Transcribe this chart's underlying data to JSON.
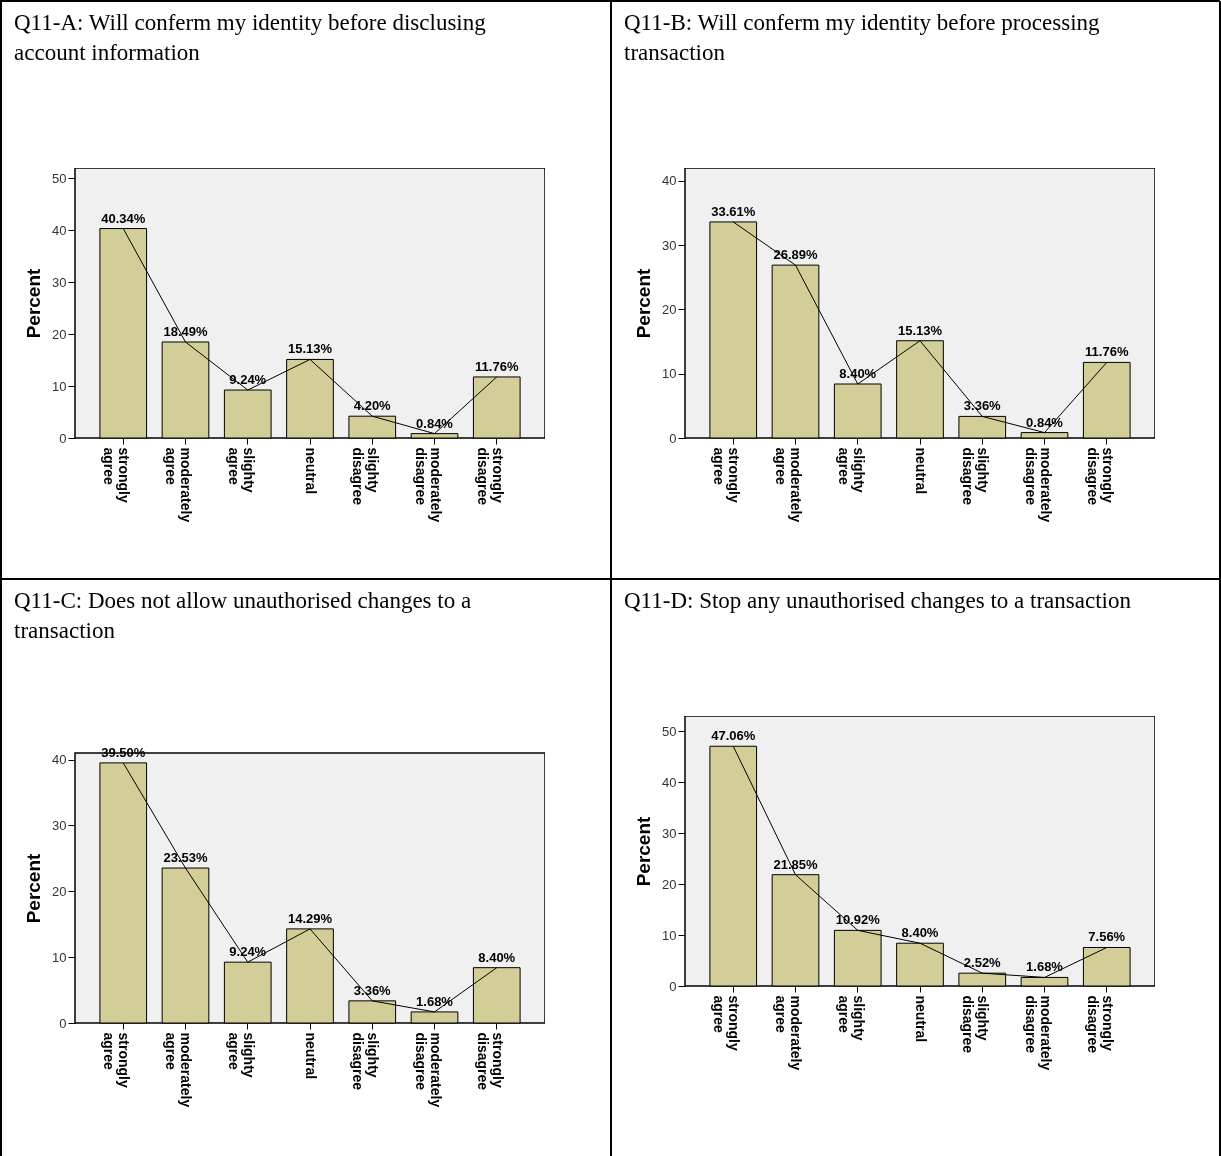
{
  "chart_data": [
    {
      "type": "bar",
      "title": "Q11-A: Will conferm my identity before disclusing account information",
      "ylabel": "Percent",
      "categories": [
        "strongly agree",
        "moderately agree",
        "slighty agree",
        "neutral",
        "slighty disagree",
        "moderately disagree",
        "strongly disagree"
      ],
      "ylim": [
        0,
        52
      ],
      "yticks": [
        0,
        10,
        20,
        30,
        40,
        50
      ],
      "series": [
        {
          "type": "bar",
          "color": "#d3ce97",
          "values": [
            40.34,
            18.49,
            9.24,
            15.13,
            4.2,
            0.84,
            11.76
          ],
          "value_labels": [
            "40.34%",
            "18.49%",
            "9.24%",
            "15.13%",
            "4.20%",
            "0.84%",
            "11.76%"
          ]
        },
        {
          "type": "line",
          "color": "#000000",
          "values": [
            40.34,
            18.49,
            9.24,
            15.13,
            4.2,
            0.84,
            11.76
          ]
        }
      ]
    },
    {
      "type": "bar",
      "title": "Q11-B: Will conferm my identity before processing transaction",
      "ylabel": "Percent",
      "categories": [
        "strongly agree",
        "moderately agree",
        "slighty agree",
        "neutral",
        "slighty disagree",
        "moderately disagree",
        "strongly disagree"
      ],
      "ylim": [
        0,
        42
      ],
      "yticks": [
        0,
        10,
        20,
        30,
        40
      ],
      "series": [
        {
          "type": "bar",
          "color": "#d3ce97",
          "values": [
            33.61,
            26.89,
            8.4,
            15.13,
            3.36,
            0.84,
            11.76
          ],
          "value_labels": [
            "33.61%",
            "26.89%",
            "8.40%",
            "15.13%",
            "3.36%",
            "0.84%",
            "11.76%"
          ]
        },
        {
          "type": "line",
          "color": "#000000",
          "values": [
            33.61,
            26.89,
            8.4,
            15.13,
            3.36,
            0.84,
            11.76
          ]
        }
      ]
    },
    {
      "type": "bar",
      "title": "Q11-C: Does not allow unauthorised changes to a transaction",
      "ylabel": "Percent",
      "categories": [
        "strongly agree",
        "moderately agree",
        "slighty agree",
        "neutral",
        "slighty disagree",
        "moderately disagree",
        "strongly disagree"
      ],
      "ylim": [
        0,
        41
      ],
      "yticks": [
        0,
        10,
        20,
        30,
        40
      ],
      "series": [
        {
          "type": "bar",
          "color": "#d3ce97",
          "values": [
            39.5,
            23.53,
            9.24,
            14.29,
            3.36,
            1.68,
            8.4
          ],
          "value_labels": [
            "39.50%",
            "23.53%",
            "9.24%",
            "14.29%",
            "3.36%",
            "1.68%",
            "8.40%"
          ]
        },
        {
          "type": "line",
          "color": "#000000",
          "values": [
            39.5,
            23.53,
            9.24,
            14.29,
            3.36,
            1.68,
            8.4
          ]
        }
      ]
    },
    {
      "type": "bar",
      "title": "Q11-D: Stop any unauthorised changes to a transaction",
      "ylabel": "Percent",
      "categories": [
        "strongly agree",
        "moderately agree",
        "slighty agree",
        "neutral",
        "slighty disagree",
        "moderately disagree",
        "strongly disagree"
      ],
      "ylim": [
        0,
        53
      ],
      "yticks": [
        0,
        10,
        20,
        30,
        40,
        50
      ],
      "series": [
        {
          "type": "bar",
          "color": "#d3ce97",
          "values": [
            47.06,
            21.85,
            10.92,
            8.4,
            2.52,
            1.68,
            7.56
          ],
          "value_labels": [
            "47.06%",
            "21.85%",
            "10.92%",
            "8.40%",
            "2.52%",
            "1.68%",
            "7.56%"
          ]
        },
        {
          "type": "line",
          "color": "#000000",
          "values": [
            47.06,
            21.85,
            10.92,
            8.4,
            2.52,
            1.68,
            7.56
          ]
        }
      ]
    }
  ]
}
